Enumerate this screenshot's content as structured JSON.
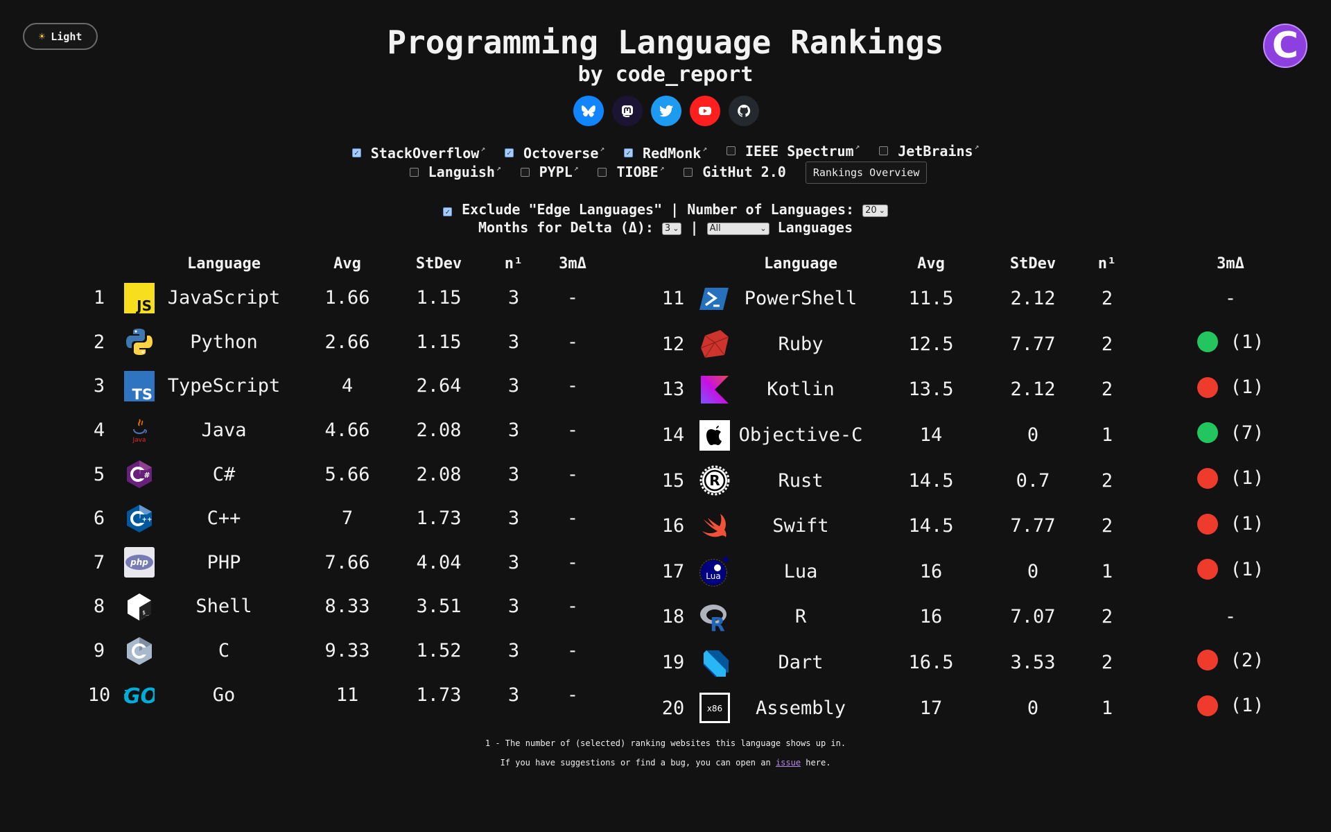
{
  "theme_toggle": {
    "label": "Light",
    "icon": "sun-icon"
  },
  "header": {
    "title": "Programming Language Rankings",
    "subtitle": "by code_report"
  },
  "socials": [
    {
      "name": "bluesky",
      "color": "#1185fe"
    },
    {
      "name": "mastodon",
      "color": "#1c1433"
    },
    {
      "name": "twitter",
      "color": "#1d9bf0"
    },
    {
      "name": "youtube",
      "color": "#ff1f1f"
    },
    {
      "name": "github",
      "color": "#24292f"
    }
  ],
  "sources": {
    "row1": [
      {
        "label": "StackOverflow",
        "checked": true
      },
      {
        "label": "Octoverse",
        "checked": true
      },
      {
        "label": "RedMonk",
        "checked": true
      },
      {
        "label": "IEEE Spectrum",
        "checked": false
      },
      {
        "label": "JetBrains",
        "checked": false
      }
    ],
    "row2": [
      {
        "label": "Languish",
        "checked": false
      },
      {
        "label": "PYPL",
        "checked": false
      },
      {
        "label": "TIOBE",
        "checked": false
      },
      {
        "label": "GitHut 2.0",
        "checked": false
      }
    ],
    "overview_button": "Rankings Overview"
  },
  "options": {
    "exclude_label": "Exclude \"Edge Languages\" | Number of Languages:",
    "exclude_checked": true,
    "num_languages": "20",
    "months_label": "Months for Delta (Δ):",
    "months_value": "3",
    "separator": "|",
    "filter_value": "All",
    "languages_label": "Languages"
  },
  "table_headers": {
    "language": "Language",
    "avg": "Avg",
    "stdev": "StDev",
    "n": "n¹",
    "delta": "3mΔ"
  },
  "left_rows": [
    {
      "rank": "1",
      "icon": "javascript-icon",
      "lang": "JavaScript",
      "avg": "1.66",
      "stdev": "1.15",
      "n": "3",
      "dir": "none",
      "delta": "-"
    },
    {
      "rank": "2",
      "icon": "python-icon",
      "lang": "Python",
      "avg": "2.66",
      "stdev": "1.15",
      "n": "3",
      "dir": "none",
      "delta": "-"
    },
    {
      "rank": "3",
      "icon": "typescript-icon",
      "lang": "TypeScript",
      "avg": "4",
      "stdev": "2.64",
      "n": "3",
      "dir": "none",
      "delta": "-"
    },
    {
      "rank": "4",
      "icon": "java-icon",
      "lang": "Java",
      "avg": "4.66",
      "stdev": "2.08",
      "n": "3",
      "dir": "none",
      "delta": "-"
    },
    {
      "rank": "5",
      "icon": "csharp-icon",
      "lang": "C#",
      "avg": "5.66",
      "stdev": "2.08",
      "n": "3",
      "dir": "none",
      "delta": "-"
    },
    {
      "rank": "6",
      "icon": "cpp-icon",
      "lang": "C++",
      "avg": "7",
      "stdev": "1.73",
      "n": "3",
      "dir": "none",
      "delta": "-"
    },
    {
      "rank": "7",
      "icon": "php-icon",
      "lang": "PHP",
      "avg": "7.66",
      "stdev": "4.04",
      "n": "3",
      "dir": "none",
      "delta": "-"
    },
    {
      "rank": "8",
      "icon": "shell-icon",
      "lang": "Shell",
      "avg": "8.33",
      "stdev": "3.51",
      "n": "3",
      "dir": "none",
      "delta": "-"
    },
    {
      "rank": "9",
      "icon": "c-icon",
      "lang": "C",
      "avg": "9.33",
      "stdev": "1.52",
      "n": "3",
      "dir": "none",
      "delta": "-"
    },
    {
      "rank": "10",
      "icon": "go-icon",
      "lang": "Go",
      "avg": "11",
      "stdev": "1.73",
      "n": "3",
      "dir": "none",
      "delta": "-"
    }
  ],
  "right_rows": [
    {
      "rank": "11",
      "icon": "powershell-icon",
      "lang": "PowerShell",
      "avg": "11.5",
      "stdev": "2.12",
      "n": "2",
      "dir": "none",
      "delta": "-"
    },
    {
      "rank": "12",
      "icon": "ruby-icon",
      "lang": "Ruby",
      "avg": "12.5",
      "stdev": "7.77",
      "n": "2",
      "dir": "up",
      "delta": "(1)"
    },
    {
      "rank": "13",
      "icon": "kotlin-icon",
      "lang": "Kotlin",
      "avg": "13.5",
      "stdev": "2.12",
      "n": "2",
      "dir": "down",
      "delta": "(1)"
    },
    {
      "rank": "14",
      "icon": "objective-c-icon",
      "lang": "Objective-C",
      "avg": "14",
      "stdev": "0",
      "n": "1",
      "dir": "up",
      "delta": "(7)"
    },
    {
      "rank": "15",
      "icon": "rust-icon",
      "lang": "Rust",
      "avg": "14.5",
      "stdev": "0.7",
      "n": "2",
      "dir": "down",
      "delta": "(1)"
    },
    {
      "rank": "16",
      "icon": "swift-icon",
      "lang": "Swift",
      "avg": "14.5",
      "stdev": "7.77",
      "n": "2",
      "dir": "down",
      "delta": "(1)"
    },
    {
      "rank": "17",
      "icon": "lua-icon",
      "lang": "Lua",
      "avg": "16",
      "stdev": "0",
      "n": "1",
      "dir": "down",
      "delta": "(1)"
    },
    {
      "rank": "18",
      "icon": "r-icon",
      "lang": "R",
      "avg": "16",
      "stdev": "7.07",
      "n": "2",
      "dir": "none",
      "delta": "-"
    },
    {
      "rank": "19",
      "icon": "dart-icon",
      "lang": "Dart",
      "avg": "16.5",
      "stdev": "3.53",
      "n": "2",
      "dir": "down",
      "delta": "(2)"
    },
    {
      "rank": "20",
      "icon": "assembly-icon",
      "lang": "Assembly",
      "avg": "17",
      "stdev": "0",
      "n": "1",
      "dir": "down",
      "delta": "(1)"
    }
  ],
  "footer": {
    "note": "1 - The number of (selected) ranking websites this language shows up in.",
    "bug_prefix": "If you have suggestions or find a bug, you can open an",
    "bug_link": "issue",
    "bug_suffix": "here."
  },
  "colors": {
    "background": "#121212",
    "up": "#22c55e",
    "down": "#ef3b2c",
    "link": "#b48ae8",
    "checkbox_checked": "#a7cbf4"
  }
}
